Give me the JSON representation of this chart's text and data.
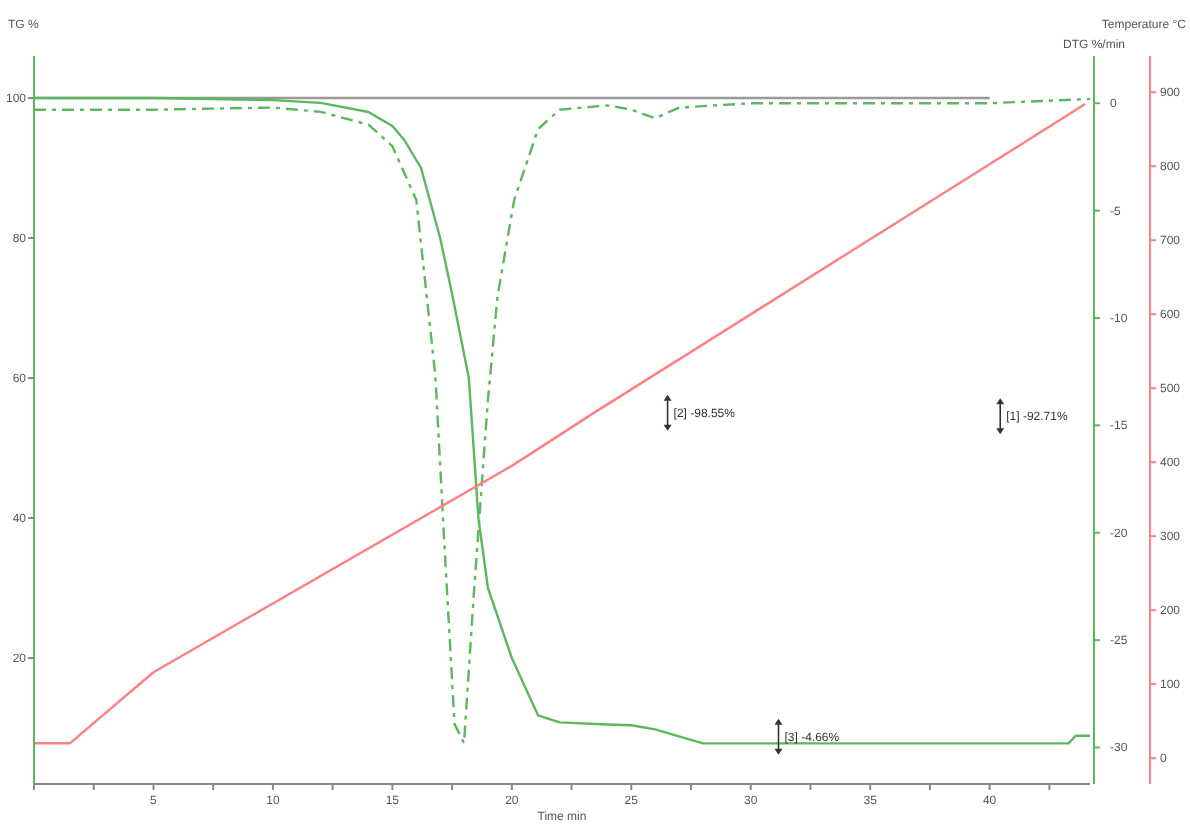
{
  "chart_data": {
    "type": "line",
    "xlabel": "Time min",
    "ylabel": "TG %",
    "y2label": "DTG %/min",
    "y3label": "Temperature °C",
    "xlim": [
      0,
      44.2
    ],
    "xticks": [
      {
        "value": 0,
        "label": null
      },
      {
        "value": 2.5,
        "label": null
      },
      5,
      {
        "value": 7.5,
        "label": null
      },
      10,
      {
        "value": 12.5,
        "label": null
      },
      15,
      {
        "value": 17.5,
        "label": null
      },
      20,
      {
        "value": 22.5,
        "label": null
      },
      25,
      {
        "value": 27.5,
        "label": null
      },
      30,
      {
        "value": 32.5,
        "label": null
      },
      35,
      {
        "value": 37.5,
        "label": null
      },
      40,
      {
        "value": 42.5,
        "label": null
      }
    ],
    "ylim": [
      2,
      106
    ],
    "yticks": [
      20,
      40,
      60,
      80,
      100
    ],
    "y2lim": [
      -31.7,
      2.2
    ],
    "y2ticks": [
      -30,
      -25,
      -20,
      -15,
      -10,
      -5,
      0
    ],
    "y3lim": [
      -35,
      949
    ],
    "y3ticks": [
      0,
      100,
      200,
      300,
      400,
      500,
      600,
      700,
      800,
      900
    ],
    "grid": false,
    "marker": "none",
    "series": [
      {
        "color": "#999999",
        "line_style": "solid",
        "x": [
          0,
          40
        ],
        "values": [
          100,
          100
        ]
      },
      {
        "color": "#5cb85c",
        "line_style": "solid",
        "x": [
          0,
          5,
          10,
          12,
          14,
          15,
          15.5,
          16.2,
          17,
          17.5,
          18.2,
          18.6,
          19,
          20,
          21.1,
          22,
          24,
          25,
          26,
          27,
          28,
          30,
          35,
          40,
          43.3,
          43.6,
          44.2
        ],
        "values": [
          100,
          100,
          99.7,
          99.3,
          98,
          96,
          94,
          90,
          80,
          72,
          60,
          40,
          30,
          20,
          11.8,
          10.8,
          10.5,
          10.4,
          9.8,
          8.8,
          7.8,
          7.8,
          7.8,
          7.8,
          7.8,
          8.9,
          8.9
        ]
      },
      {
        "color": "#5cb85c",
        "line_style": "dashed",
        "axis": "y2",
        "x": [
          0,
          5,
          10,
          12,
          14,
          15,
          16,
          16.8,
          17.2,
          17.6,
          18,
          18.4,
          19,
          19.4,
          20.1,
          21.1,
          22,
          24,
          25,
          26,
          27,
          30,
          35,
          40,
          44.2
        ],
        "values": [
          -0.3,
          -0.3,
          -0.2,
          -0.4,
          -1,
          -2,
          -4.5,
          -12.7,
          -21,
          -28.9,
          -29.8,
          -23,
          -13.8,
          -9,
          -4.5,
          -1.2,
          -0.3,
          -0.1,
          -0.3,
          -0.7,
          -0.2,
          0,
          0,
          0,
          0.2
        ]
      },
      {
        "color": "#ff8080",
        "line_style": "solid",
        "axis": "y3",
        "x": [
          0,
          1.5,
          5,
          20,
          23.6,
          44
        ],
        "values": [
          20,
          20,
          116,
          395,
          470,
          884
        ]
      }
    ],
    "annotations": [
      "[2] -98.55%",
      "[1] -92.71%",
      "[3] -4.66%"
    ]
  }
}
